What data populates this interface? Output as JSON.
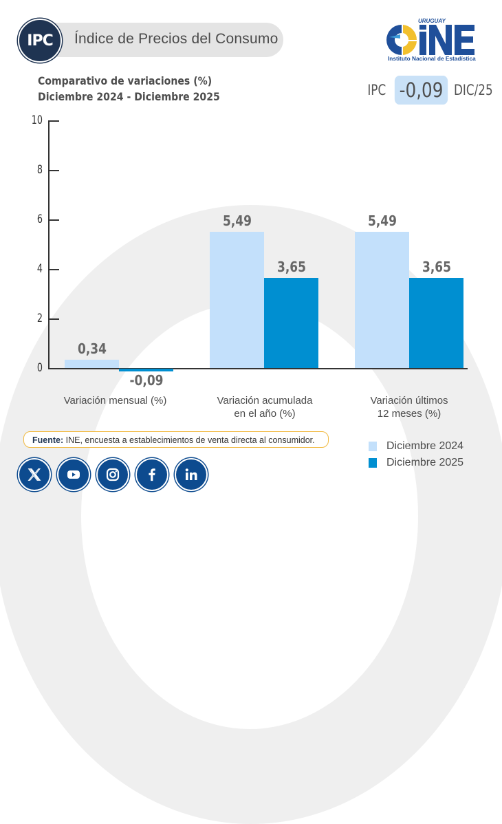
{
  "header": {
    "badge": "IPC",
    "title": "Índice de Precios del Consumo"
  },
  "subtitle": {
    "line1": "Comparativo de variaciones (%)",
    "line2": "Diciembre 2024 - Diciembre 2025"
  },
  "logo": {
    "country": "URUGUAY",
    "acronym": "INE",
    "name": "Instituto Nacional de Estadística"
  },
  "kpi": {
    "label": "IPC",
    "value": "-0,09",
    "period": "DIC/25"
  },
  "source": {
    "label": "Fuente:",
    "text": " INE, encuesta a establecimientos de venta directa al consumidor."
  },
  "legend": [
    {
      "label": "Diciembre 2024",
      "color": "#c3e0fb"
    },
    {
      "label": "Diciembre 2025",
      "color": "#008fd1"
    }
  ],
  "social": [
    "x-icon",
    "youtube-icon",
    "instagram-icon",
    "facebook-icon",
    "linkedin-icon"
  ],
  "colors": {
    "series_2024": "#c3e0fb",
    "series_2025": "#008fd1",
    "badge_navy": "#1f3452",
    "social_blue": "#0d4b8f",
    "source_border": "#f1b93f",
    "kpi_bg": "#c9e1f7"
  },
  "chart_data": {
    "type": "bar",
    "title": "Comparativo de variaciones (%) Diciembre 2024 - Diciembre 2025",
    "categories": [
      "Variación mensual (%)",
      "Variación acumulada en el año (%)",
      "Variación últimos 12 meses (%)"
    ],
    "category_lines": [
      [
        "Variación mensual (%)"
      ],
      [
        "Variación acumulada",
        "en el año (%)"
      ],
      [
        "Variación últimos",
        "12 meses (%)"
      ]
    ],
    "series": [
      {
        "name": "Diciembre 2024",
        "values": [
          0.34,
          5.49,
          5.49
        ],
        "labels": [
          "0,34",
          "5,49",
          "5,49"
        ]
      },
      {
        "name": "Diciembre 2025",
        "values": [
          -0.09,
          3.65,
          3.65
        ],
        "labels": [
          "-0,09",
          "3,65",
          "3,65"
        ]
      }
    ],
    "xlabel": "",
    "ylabel": "",
    "ylim": [
      0,
      10
    ],
    "yticks": [
      0,
      2,
      4,
      6,
      8,
      10
    ],
    "grid": false,
    "legend_position": "bottom-right"
  }
}
